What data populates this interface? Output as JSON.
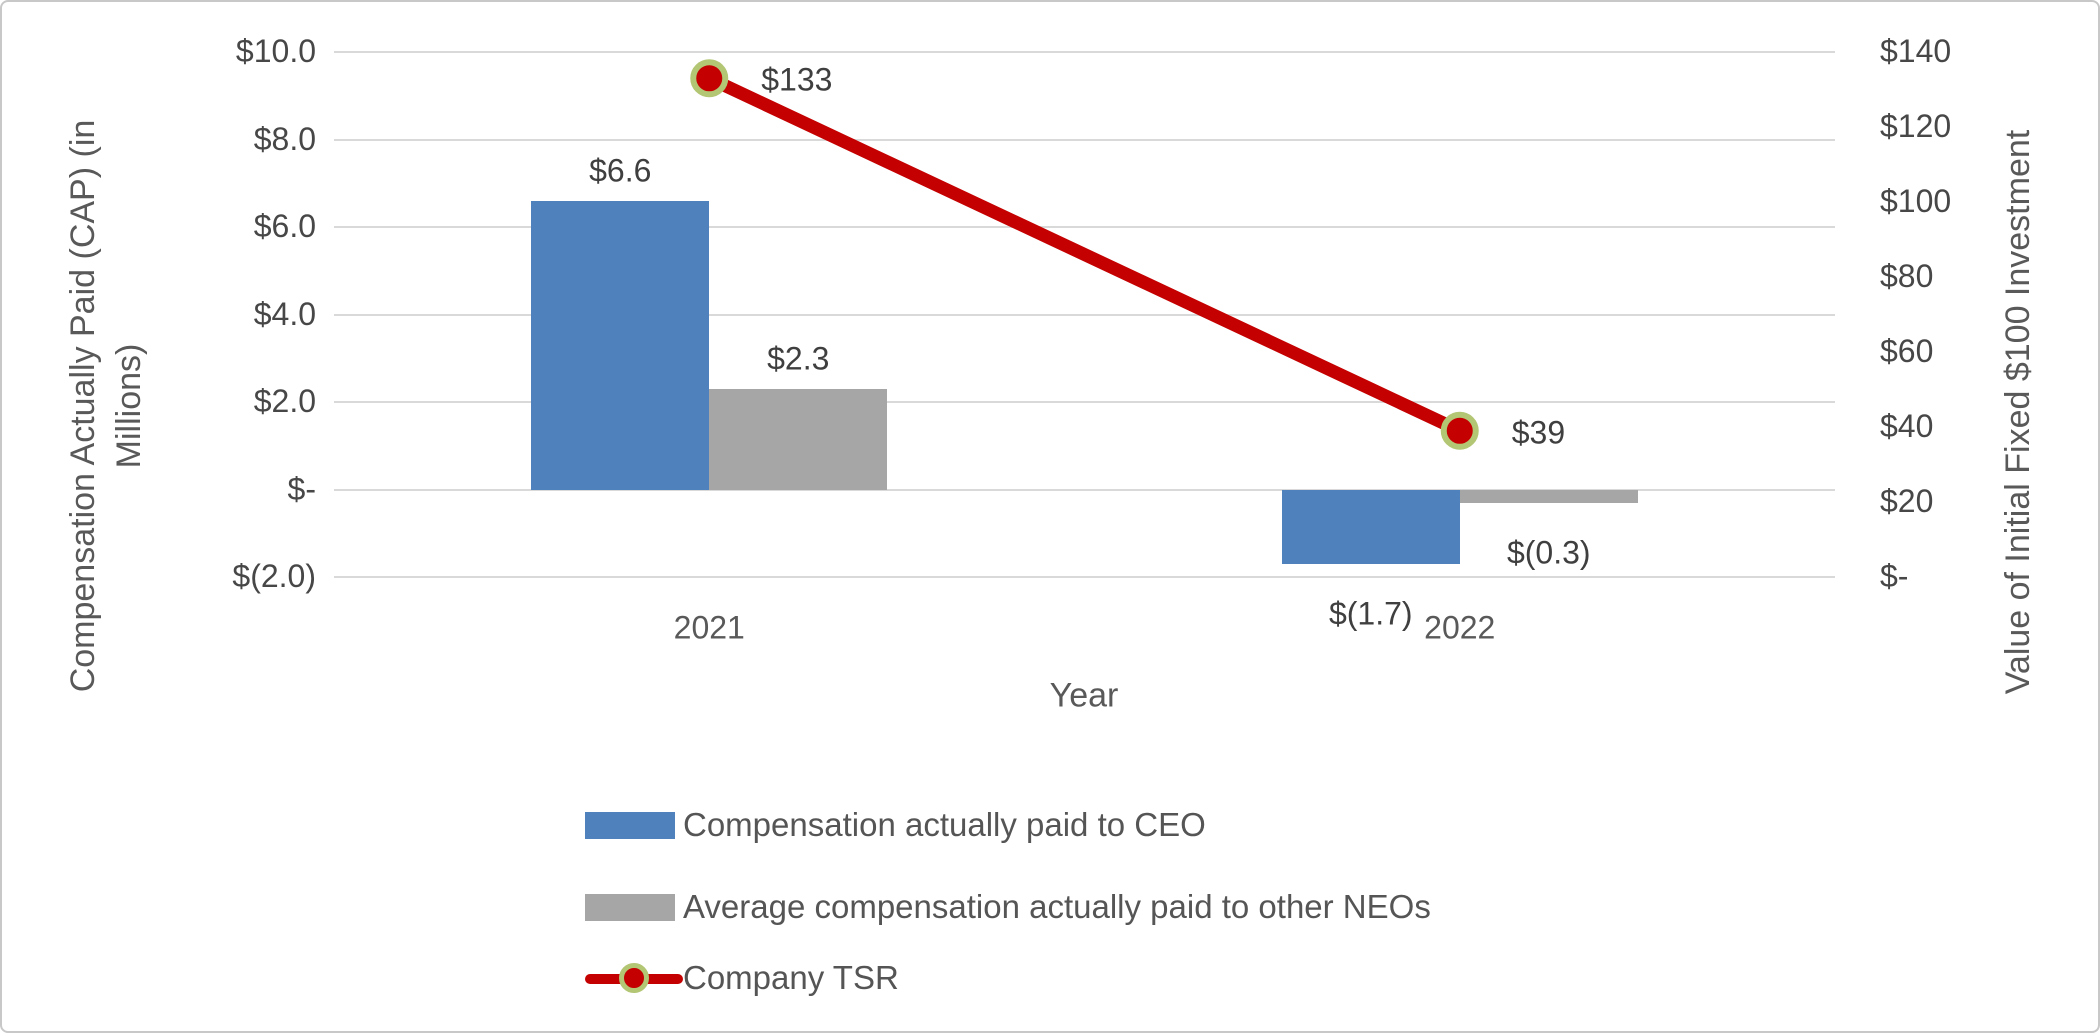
{
  "chart_data": {
    "type": "combo",
    "categories": [
      "2021",
      "2022"
    ],
    "series": [
      {
        "name": "Compensation actually paid to CEO",
        "type": "bar",
        "axis": "primary",
        "color": "#4F81BC",
        "values": [
          6.6,
          -1.7
        ],
        "labels": [
          "$6.6",
          "$(1.7)"
        ]
      },
      {
        "name": "Average compensation actually paid to other NEOs",
        "type": "bar",
        "axis": "primary",
        "color": "#A6A6A6",
        "values": [
          2.3,
          -0.3
        ],
        "labels": [
          "$2.3",
          "$(0.3)"
        ]
      },
      {
        "name": "Company TSR",
        "type": "line",
        "axis": "secondary",
        "color": "#C40000",
        "marker_ring_color": "#B2C674",
        "values": [
          133,
          39
        ],
        "labels": [
          "$133",
          "$39"
        ]
      }
    ],
    "title": "",
    "xlabel": "Year",
    "ylabel_primary": "Compensation Actually Paid (CAP) (in Millions)",
    "ylabel_secondary": "Value of Initial Fixed $100 Investment",
    "primary_ylim": [
      -2,
      10
    ],
    "secondary_ylim": [
      0,
      140
    ],
    "primary_ticks": [
      "$10.0",
      "$8.0",
      "$6.0",
      "$4.0",
      "$2.0",
      "$-",
      "$(2.0)"
    ],
    "secondary_ticks": [
      "$140",
      "$120",
      "$100",
      "$80",
      "$60",
      "$40",
      "$20",
      "$-"
    ],
    "grid": true,
    "legend_position": "bottom-left"
  },
  "axes": {
    "left_title_line1": "Compensation Actually Paid (CAP) (in",
    "left_title_line2": "Millions)",
    "right_title": "Value of Initial Fixed $100 Investment",
    "x_title": "Year"
  },
  "legend": {
    "items": [
      {
        "label": "Compensation actually paid to CEO",
        "swatch": "bar",
        "color": "#4F81BC"
      },
      {
        "label": "Average compensation actually paid to other NEOs",
        "swatch": "bar",
        "color": "#A6A6A6"
      },
      {
        "label": "Company TSR",
        "swatch": "line-marker",
        "color": "#C40000",
        "marker_ring": "#B2C674"
      }
    ]
  },
  "colors": {
    "grid": "#D9D9D9",
    "tick_text": "#474747",
    "label_text": "#3F3F3F",
    "category_text": "#595959",
    "axis_title_text": "#595959",
    "bar_blue": "#4F81BC",
    "bar_gray": "#A6A6A6",
    "line_red": "#C40000",
    "marker_ring": "#B2C674",
    "border": "#C8C8C8"
  }
}
